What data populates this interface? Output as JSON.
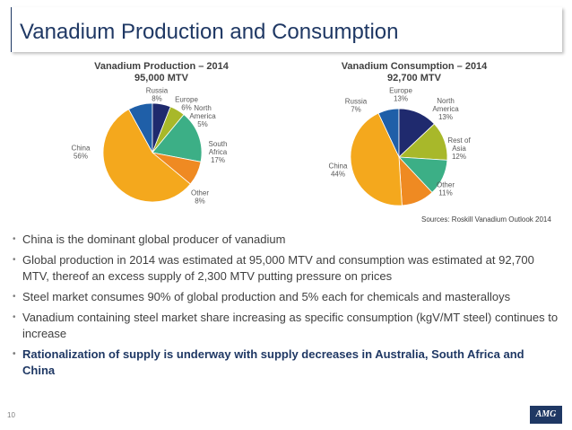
{
  "header": {
    "title": "Vanadium Production and Consumption"
  },
  "chart_data": [
    {
      "type": "pie",
      "title": "Vanadium Production – 2014",
      "subtitle": "95,000 MTV",
      "categories": [
        "China",
        "Russia",
        "Europe",
        "North America",
        "South Africa",
        "Other"
      ],
      "labels": [
        [
          "China",
          "56%"
        ],
        [
          "Russia",
          "8%"
        ],
        [
          "Europe",
          "6%"
        ],
        [
          "North",
          "America",
          "5%"
        ],
        [
          "South",
          "Africa",
          "17%"
        ],
        [
          "Other",
          "8%"
        ]
      ],
      "values": [
        56,
        8,
        6,
        5,
        17,
        8
      ],
      "colors": [
        "#f4a81d",
        "#1f5fa8",
        "#1f2a6e",
        "#a8b82a",
        "#3caf86",
        "#ef8a22"
      ]
    },
    {
      "type": "pie",
      "title": "Vanadium Consumption – 2014",
      "subtitle": "92,700 MTV",
      "categories": [
        "China",
        "Russia",
        "Europe",
        "North America",
        "Rest of Asia",
        "Other"
      ],
      "labels": [
        [
          "China",
          "44%"
        ],
        [
          "Russia",
          "7%"
        ],
        [
          "Europe",
          "13%"
        ],
        [
          "North",
          "America",
          "13%"
        ],
        [
          "Rest of",
          "Asia",
          "12%"
        ],
        [
          "Other",
          "11%"
        ]
      ],
      "values": [
        44,
        7,
        13,
        13,
        12,
        11
      ],
      "colors": [
        "#f4a81d",
        "#1f5fa8",
        "#1f2a6e",
        "#a8b82a",
        "#3caf86",
        "#ef8a22"
      ]
    }
  ],
  "source": "Sources: Roskill Vanadium Outlook 2014",
  "bullets": [
    "China is the dominant global producer of vanadium",
    "Global production in 2014 was estimated at 95,000 MTV and consumption was estimated at 92,700 MTV, thereof an excess supply of 2,300 MTV putting pressure on prices",
    "Steel market consumes 90% of global production and 5% each for chemicals and masteralloys",
    "Vanadium containing steel market share increasing as specific consumption (kgV/MT steel) continues to increase",
    "Rationalization of supply is underway with supply decreases in Australia, South Africa and China"
  ],
  "bullet_marker": "•",
  "page_number": "10",
  "logo_text": "AMG"
}
